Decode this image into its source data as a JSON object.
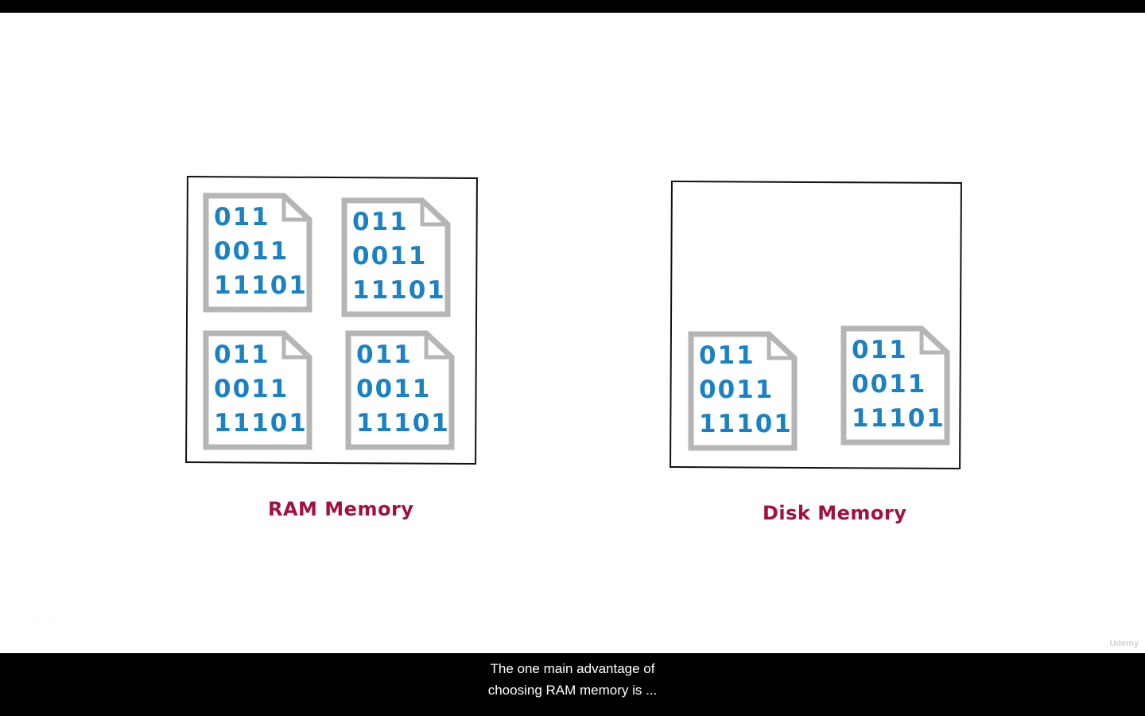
{
  "slide": {
    "ram": {
      "label": "RAM Memory",
      "files": [
        {
          "lines": [
            "011",
            "0011",
            "11101"
          ]
        },
        {
          "lines": [
            "011",
            "0011",
            "11101"
          ]
        },
        {
          "lines": [
            "011",
            "0011",
            "11101"
          ]
        },
        {
          "lines": [
            "011",
            "0011",
            "11101"
          ]
        }
      ]
    },
    "disk": {
      "label": "Disk Memory",
      "files": [
        {
          "lines": [
            "011",
            "0011",
            "11101"
          ]
        },
        {
          "lines": [
            "011",
            "0011",
            "11101"
          ]
        }
      ]
    },
    "watermark": "Udemy"
  },
  "subtitle": {
    "line1": "The one main advantage of",
    "line2": "choosing RAM memory is ..."
  },
  "colors": {
    "bits": "#1a82c4",
    "doc_outline": "#b5b5b5",
    "label": "#a3103f"
  }
}
